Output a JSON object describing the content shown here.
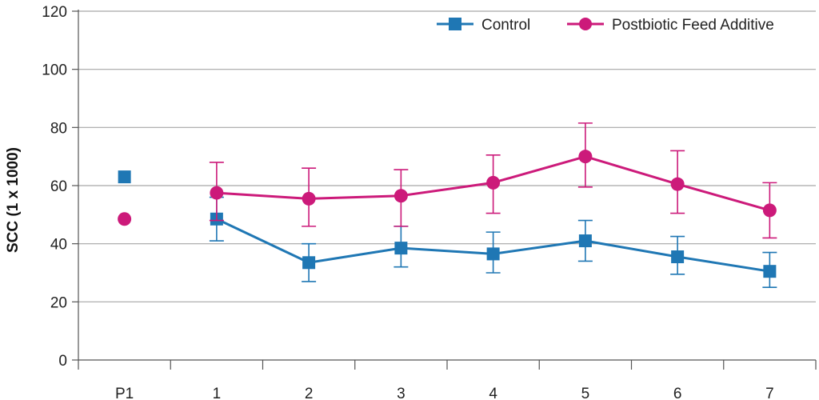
{
  "chart_data": {
    "type": "line",
    "title": "",
    "xlabel": "",
    "ylabel": "SCC (1 x 1000)",
    "categories": [
      "P1",
      "1",
      "2",
      "3",
      "4",
      "5",
      "6",
      "7"
    ],
    "ylim": [
      0,
      120
    ],
    "yticks": [
      0,
      20,
      40,
      60,
      80,
      100,
      120
    ],
    "grid": true,
    "legend_position": "top-right",
    "series": [
      {
        "name": "Control",
        "color": "#1f77b4",
        "marker": "square",
        "values": [
          63,
          48.5,
          33.5,
          38.5,
          36.5,
          41,
          35.5,
          30.5
        ],
        "error_low": [
          null,
          41,
          27,
          32,
          30,
          34,
          29.5,
          25
        ],
        "error_high": [
          null,
          56,
          40,
          46,
          44,
          48,
          42.5,
          37
        ],
        "connect_from_index": 1
      },
      {
        "name": "Postbiotic Feed Additive",
        "color": "#cc1a7a",
        "marker": "circle",
        "values": [
          48.5,
          57.5,
          55.5,
          56.5,
          61,
          70,
          60.5,
          51.5
        ],
        "error_low": [
          null,
          48,
          46,
          46,
          50.5,
          59.5,
          50.5,
          42
        ],
        "error_high": [
          null,
          68,
          66,
          65.5,
          70.5,
          81.5,
          72,
          61
        ],
        "connect_from_index": 1
      }
    ]
  }
}
